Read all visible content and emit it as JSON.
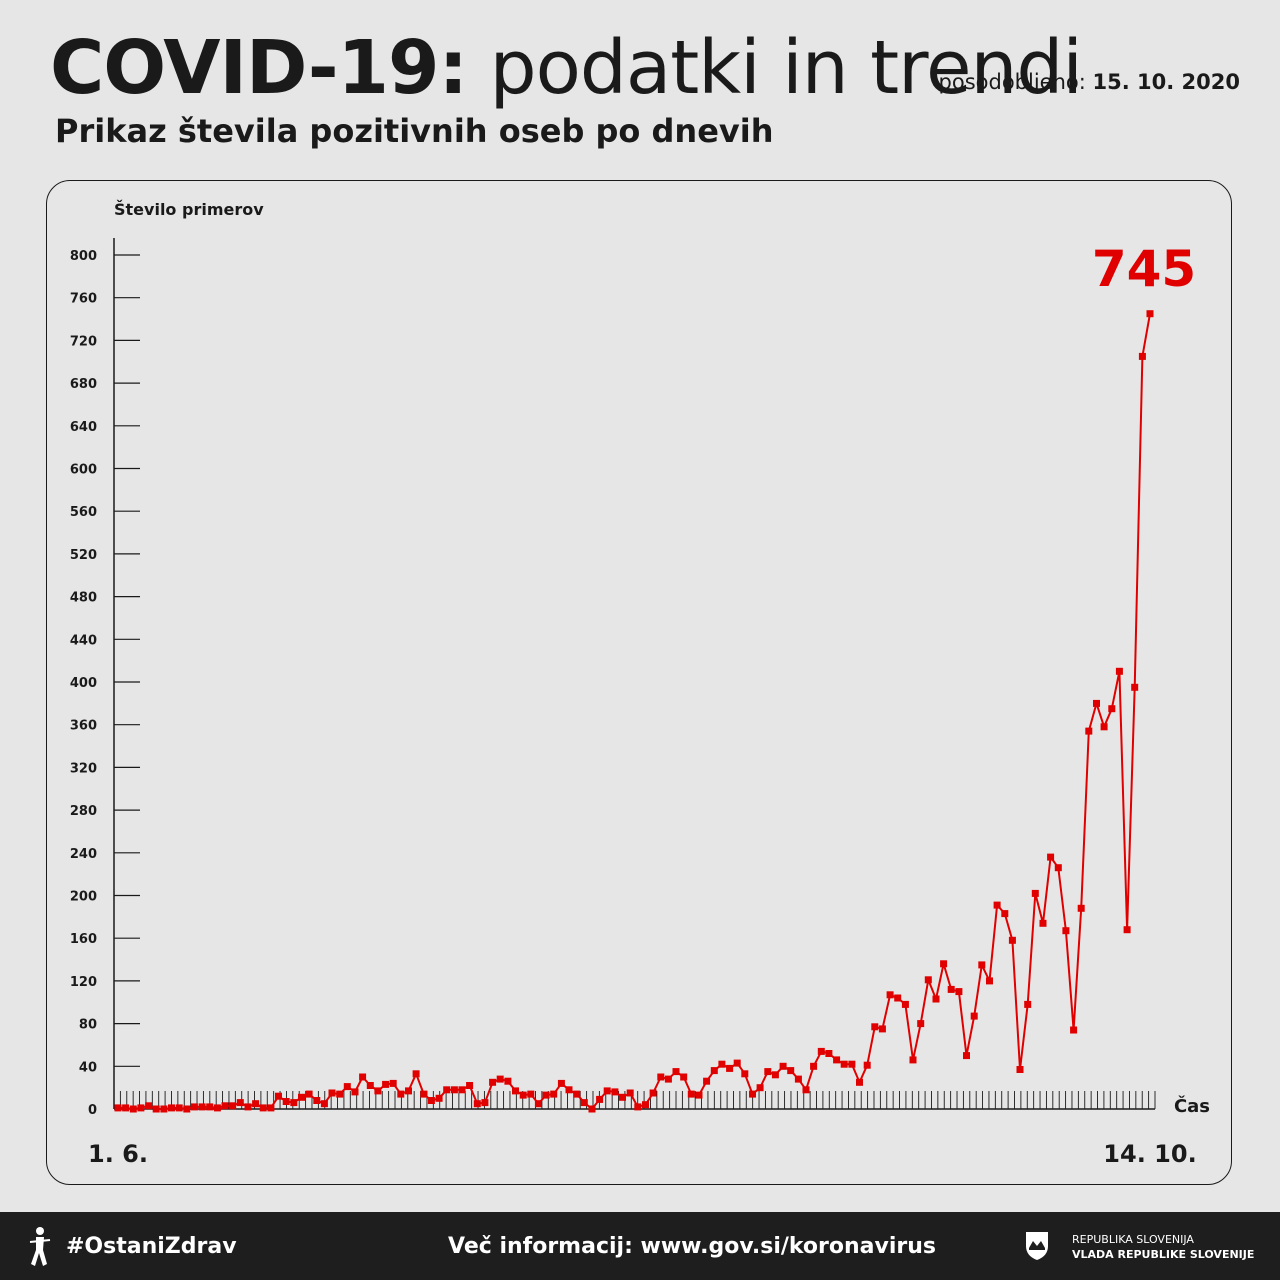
{
  "header": {
    "title_bold": "COVID-19:",
    "title_light": "podatki in trendi",
    "updated_label": "posodobljeno:",
    "updated_date": "15. 10. 2020",
    "subtitle": "Prikaz števila pozitivnih oseb po dnevih"
  },
  "footer": {
    "hashtag": "#OstaniZdrav",
    "info": "Več informacij: www.gov.si/koronavirus",
    "gov_line1": "REPUBLIKA SLOVENIJA",
    "gov_line2": "VLADA REPUBLIKE SLOVENIJE",
    "icons": [
      "person-figure-icon",
      "slovenia-crest-icon"
    ]
  },
  "colors": {
    "series": "#e00000",
    "text": "#1a1a1a",
    "background": "#e6e6e6",
    "footer": "#1e1e1e"
  },
  "chart_data": {
    "type": "line",
    "ylabel": "Število primerov",
    "xlabel": "Čas",
    "ylim": [
      0,
      800
    ],
    "yticks": [
      0,
      40,
      80,
      120,
      160,
      200,
      240,
      280,
      320,
      360,
      400,
      440,
      480,
      520,
      560,
      600,
      640,
      680,
      720,
      760,
      800
    ],
    "x_start_label": "1. 6.",
    "x_end_label": "14. 10.",
    "highlight_label": "745",
    "grid": false,
    "series": [
      {
        "values": [
          1,
          1,
          0,
          1,
          3,
          0,
          0,
          1,
          1,
          0,
          2,
          2,
          2,
          1,
          3,
          3,
          6,
          2,
          5,
          1,
          1,
          12,
          7,
          6,
          11,
          14,
          8,
          5,
          15,
          14,
          21,
          16,
          30,
          22,
          17,
          23,
          24,
          14,
          17,
          33,
          14,
          8,
          10,
          18,
          18,
          18,
          22,
          5,
          6,
          25,
          28,
          26,
          17,
          13,
          14,
          5,
          13,
          14,
          24,
          18,
          14,
          6,
          0,
          9,
          17,
          16,
          11,
          15,
          2,
          4,
          15,
          30,
          28,
          35,
          30,
          14,
          13,
          26,
          36,
          42,
          38,
          43,
          33,
          14,
          20,
          35,
          32,
          40,
          36,
          28,
          18,
          40,
          54,
          52,
          46,
          42,
          42,
          25,
          41,
          77,
          75,
          107,
          104,
          98,
          46,
          80,
          121,
          103,
          136,
          112,
          110,
          50,
          87,
          135,
          120,
          191,
          183,
          158,
          37,
          98,
          202,
          174,
          236,
          226,
          167,
          74,
          188,
          354,
          380,
          358,
          375,
          410,
          168,
          395,
          705,
          745
        ]
      }
    ]
  }
}
